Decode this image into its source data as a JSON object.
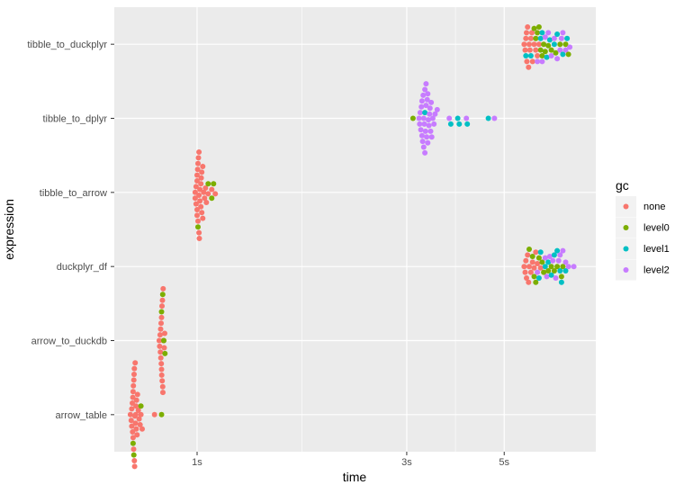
{
  "chart_data": {
    "type": "scatter",
    "subtype": "beeswarm",
    "title": "",
    "xlabel": "time",
    "ylabel": "expression",
    "x_scale": "log",
    "xlim": [
      0.648,
      8.08
    ],
    "x_ticks": [
      {
        "value": 1,
        "label": "1s"
      },
      {
        "value": 3,
        "label": "3s"
      },
      {
        "value": 5,
        "label": "5s"
      }
    ],
    "x_minor_ticks": [
      1.732,
      3.873
    ],
    "grid": true,
    "legend": {
      "title": "gc",
      "placement": "right",
      "entries": [
        {
          "key": "none",
          "label": "none",
          "color": "#F8766D"
        },
        {
          "key": "level0",
          "label": "level0",
          "color": "#7CAE00"
        },
        {
          "key": "level1",
          "label": "level1",
          "color": "#00BFC4"
        },
        {
          "key": "level2",
          "label": "level2",
          "color": "#C77CFF"
        }
      ]
    },
    "categories": [
      "tibble_to_duckplyr",
      "tibble_to_dplyr",
      "tibble_to_arrow",
      "duckplyr_df",
      "arrow_to_duckdb",
      "arrow_table"
    ],
    "series": [
      {
        "name": "tibble_to_duckplyr",
        "times": {
          "none": [
            5.55,
            5.58,
            5.6,
            5.62,
            5.63,
            5.65,
            5.68,
            5.7,
            5.72,
            5.75,
            5.78,
            5.8,
            5.85,
            5.9,
            5.95,
            6.0
          ],
          "level0": [
            5.85,
            5.9,
            5.95,
            6.0,
            6.05,
            6.1,
            6.15,
            6.2,
            6.3,
            6.4,
            6.55,
            6.7,
            6.9,
            7.0
          ],
          "level1": [
            5.6,
            5.75,
            6.05,
            6.1,
            6.25,
            6.35,
            6.5,
            6.6,
            6.8,
            6.95
          ],
          "level2": [
            5.95,
            6.1,
            6.2,
            6.3,
            6.4,
            6.5,
            6.6,
            6.7,
            6.75,
            6.8,
            6.9,
            7.05
          ]
        }
      },
      {
        "name": "tibble_to_dplyr",
        "times": {
          "none": [],
          "level0": [
            3.1
          ],
          "level1": [
            3.3,
            3.78,
            3.92,
            3.95,
            4.12,
            4.6
          ],
          "level2": [
            3.2,
            3.21,
            3.22,
            3.23,
            3.24,
            3.25,
            3.25,
            3.26,
            3.27,
            3.28,
            3.28,
            3.29,
            3.3,
            3.3,
            3.31,
            3.32,
            3.32,
            3.33,
            3.34,
            3.35,
            3.35,
            3.36,
            3.37,
            3.38,
            3.39,
            3.4,
            3.41,
            3.42,
            3.44,
            3.46,
            3.48,
            3.52,
            3.75,
            4.1,
            4.75
          ]
        }
      },
      {
        "name": "tibble_to_arrow",
        "times": {
          "none": [
            0.99,
            0.99,
            0.995,
            0.995,
            1.0,
            1.0,
            1.0,
            1.0,
            1.003,
            1.005,
            1.005,
            1.007,
            1.01,
            1.01,
            1.01,
            1.012,
            1.015,
            1.015,
            1.02,
            1.02,
            1.022,
            1.025,
            1.025,
            1.03,
            1.03,
            1.035,
            1.04,
            1.045,
            1.05,
            1.06,
            1.08,
            1.1
          ],
          "level0": [
            1.005,
            1.06,
            1.08,
            1.09
          ]
        }
      },
      {
        "name": "duckplyr_df",
        "times": {
          "none": [
            5.55,
            5.58,
            5.6,
            5.62,
            5.65,
            5.68,
            5.7,
            5.75,
            5.8,
            5.85,
            5.9,
            5.95,
            6.05
          ],
          "level0": [
            5.7,
            5.8,
            5.85,
            5.9,
            6.0,
            6.1,
            6.15,
            6.3,
            6.4,
            6.5,
            6.6,
            6.75,
            6.8
          ],
          "level1": [
            6.0,
            6.05,
            6.2,
            6.3,
            6.4,
            6.5,
            6.6,
            6.7,
            6.75,
            6.9
          ],
          "level2": [
            5.95,
            6.2,
            6.25,
            6.35,
            6.45,
            6.55,
            6.65,
            6.7,
            6.8,
            6.9,
            7.0,
            7.2
          ]
        }
      },
      {
        "name": "arrow_to_duckdb",
        "times": {
          "none": [
            0.82,
            0.822,
            0.824,
            0.825,
            0.826,
            0.827,
            0.828,
            0.829,
            0.83,
            0.83,
            0.831,
            0.832,
            0.833,
            0.834,
            0.835,
            0.836,
            0.837,
            0.838,
            0.84,
            0.842,
            0.844
          ],
          "level0": [
            0.83,
            0.835,
            0.84,
            0.845
          ]
        }
      },
      {
        "name": "arrow_table",
        "times": {
          "none": [
            0.705,
            0.708,
            0.71,
            0.71,
            0.712,
            0.713,
            0.714,
            0.715,
            0.715,
            0.716,
            0.717,
            0.718,
            0.719,
            0.72,
            0.72,
            0.721,
            0.722,
            0.723,
            0.724,
            0.725,
            0.726,
            0.727,
            0.728,
            0.73,
            0.732,
            0.735,
            0.738,
            0.742,
            0.745,
            0.75,
            0.8
          ],
          "level0": [
            0.715,
            0.718,
            0.745,
            0.83
          ]
        }
      }
    ]
  }
}
